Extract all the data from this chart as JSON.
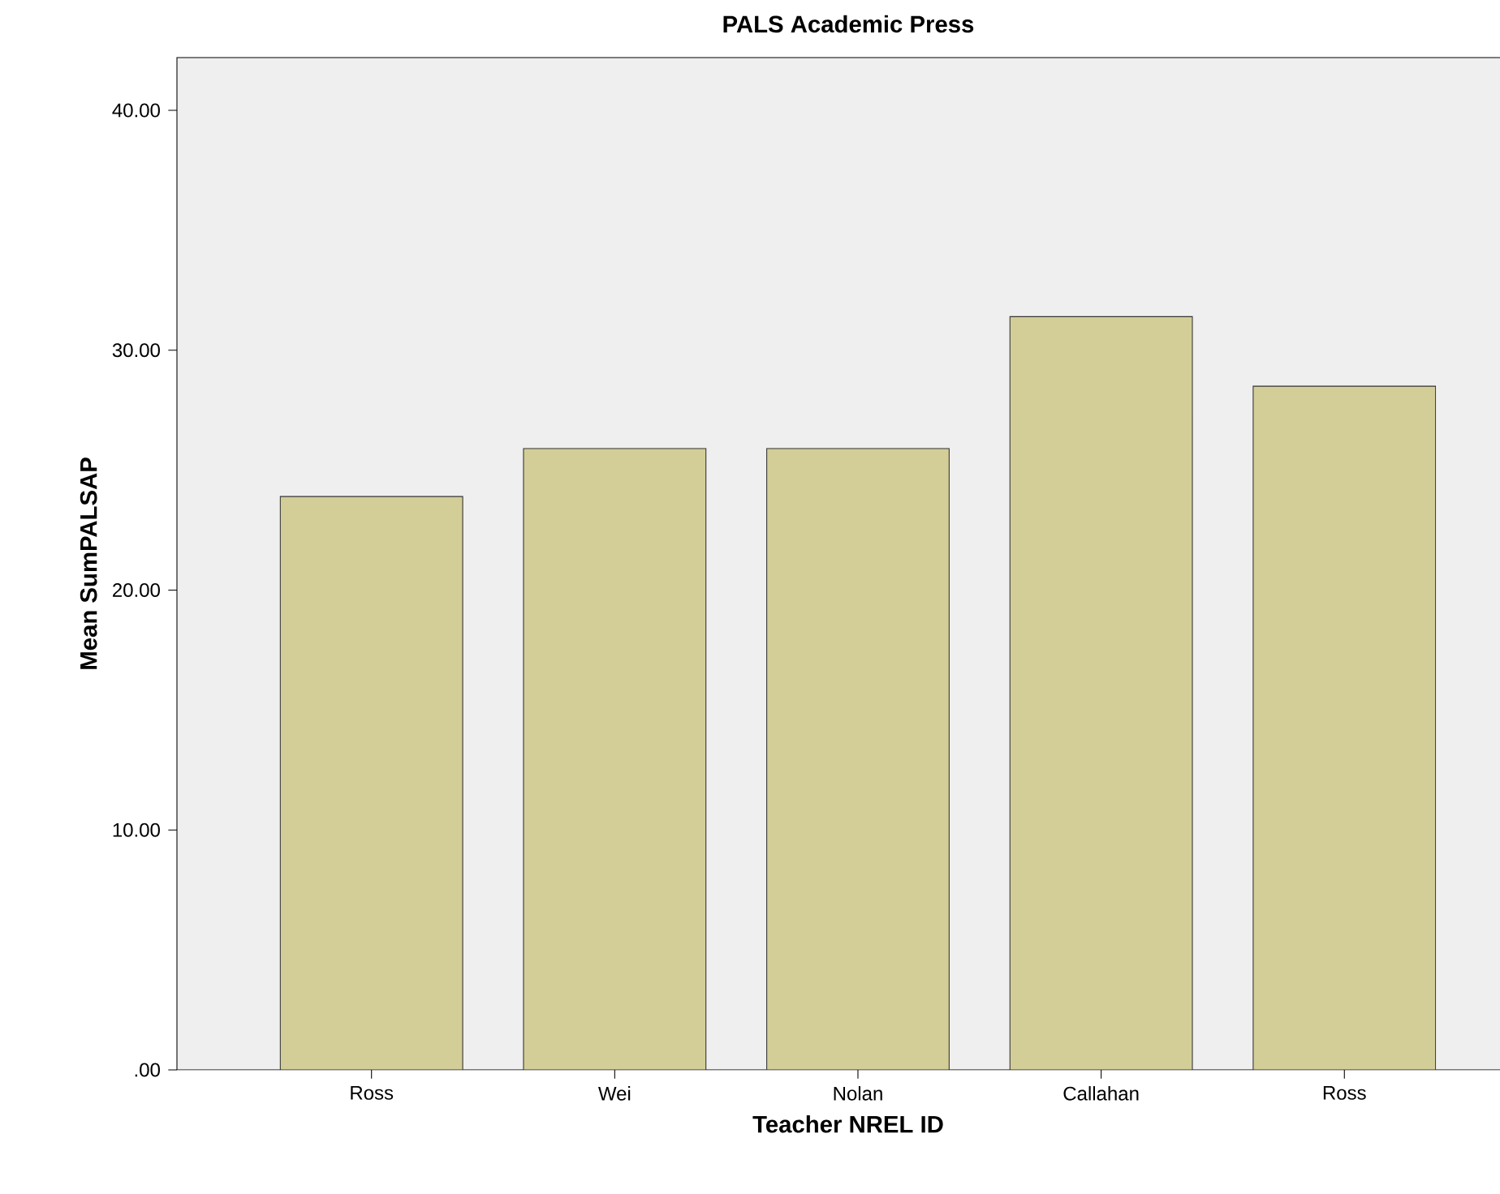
{
  "chart_data": {
    "type": "bar",
    "title": "PALS Academic Press",
    "xlabel": "Teacher NREL ID",
    "ylabel": "Mean SumPALSAP",
    "categories": [
      "Ross",
      "Wei",
      "Nolan",
      "Callahan",
      "Ross"
    ],
    "values": [
      23.9,
      25.9,
      25.9,
      31.4,
      28.5
    ],
    "color": "#d3ce97",
    "ylim": [
      0,
      42.2
    ],
    "yticks": [
      {
        "value": 0,
        "label": ".00"
      },
      {
        "value": 10,
        "label": "10.00"
      },
      {
        "value": 20,
        "label": "20.00"
      },
      {
        "value": 30,
        "label": "30.00"
      },
      {
        "value": 40,
        "label": "40.00"
      }
    ],
    "grid": false
  }
}
